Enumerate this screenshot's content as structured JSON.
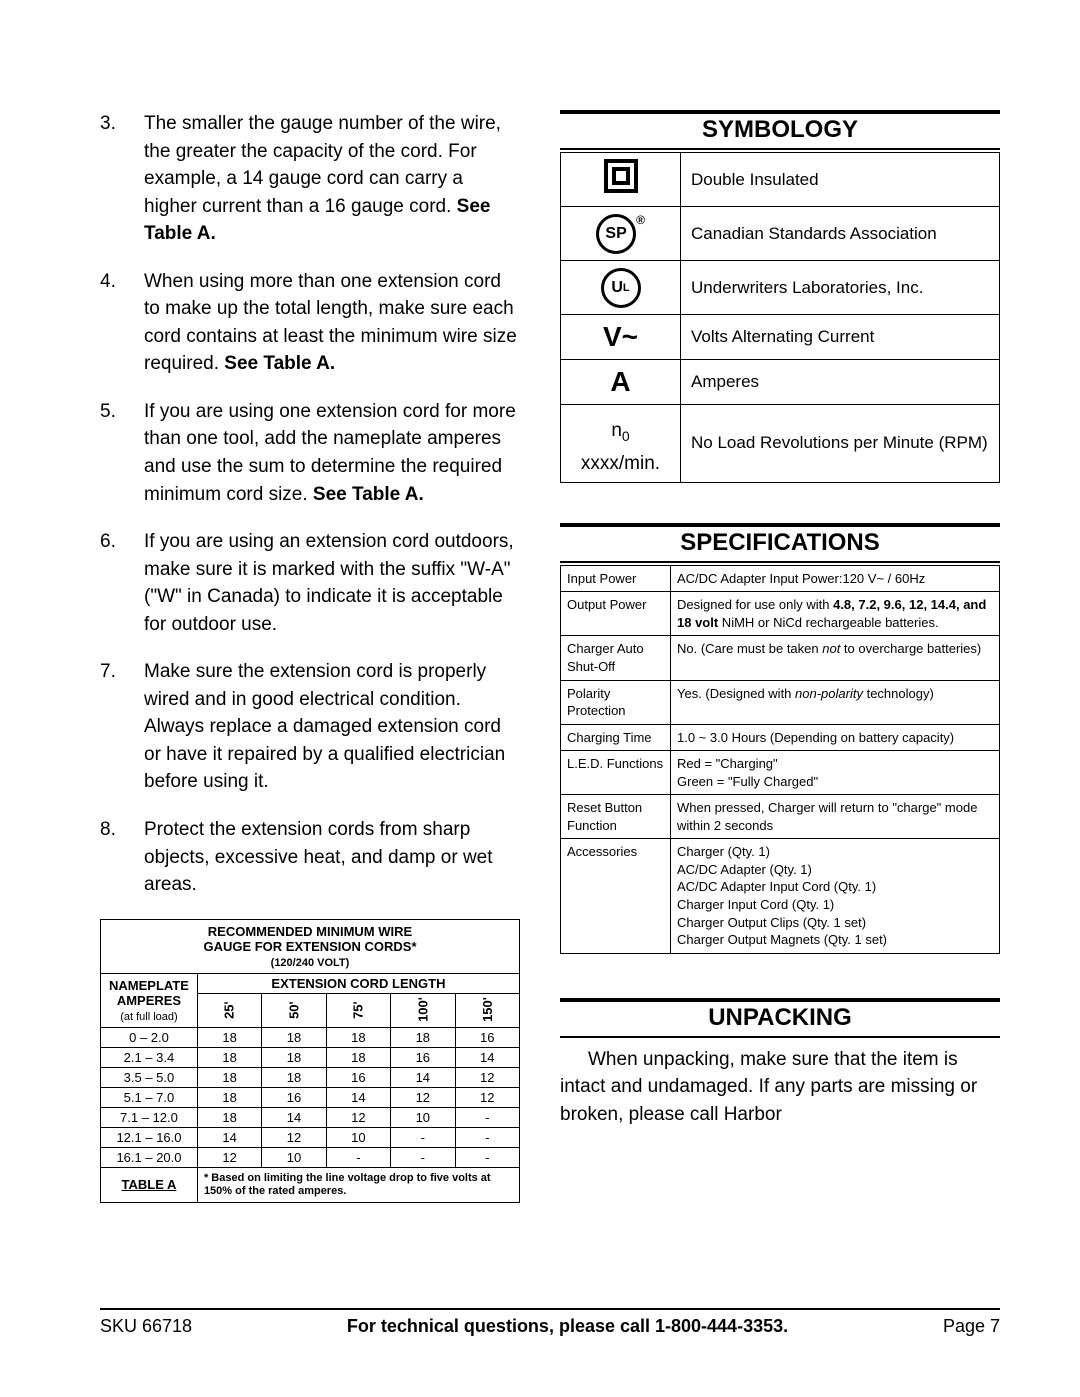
{
  "list": {
    "items": [
      {
        "num": "3.",
        "html": "The smaller the gauge number of the wire, the greater the capacity of the cord.  For example, a 14 gauge cord can carry a higher current than a 16 gauge cord.  <b>See Table A.</b>"
      },
      {
        "num": "4.",
        "html": "When using more than one extension cord to make up the total length, make sure each cord contains at least the minimum wire size required.  <b>See Table A.</b>"
      },
      {
        "num": "5.",
        "html": "If you are using one extension cord for more than one tool, add the nameplate amperes and use the sum to determine the required minimum cord size.  <b>See Table A.</b>"
      },
      {
        "num": "6.",
        "html": "If you are using an extension cord outdoors, make sure it is marked with the suffix \"W-A\" (\"W\" in Canada) to indicate it is acceptable for outdoor use."
      },
      {
        "num": "7.",
        "html": "Make sure the extension cord is properly wired and in good electrical condition.  Always replace a damaged extension cord or have it repaired by a qualified electrician before using it."
      },
      {
        "num": "8.",
        "html": "Protect the extension cords from sharp objects, excessive heat, and damp or wet areas."
      }
    ]
  },
  "wire_table": {
    "title1": "RECOMMENDED MINIMUM WIRE",
    "title2": "GAUGE FOR EXTENSION CORDS*",
    "title3": "(120/240 VOLT)",
    "col1_a": "NAMEPLATE",
    "col1_b": "AMPERES",
    "col1_c": "(at full load)",
    "col_group": "EXTENSION CORD LENGTH",
    "lengths": [
      "25'",
      "50'",
      "75'",
      "100'",
      "150'"
    ],
    "rows": [
      {
        "r": "0 – 2.0",
        "v": [
          "18",
          "18",
          "18",
          "18",
          "16"
        ]
      },
      {
        "r": "2.1 – 3.4",
        "v": [
          "18",
          "18",
          "18",
          "16",
          "14"
        ]
      },
      {
        "r": "3.5 – 5.0",
        "v": [
          "18",
          "18",
          "16",
          "14",
          "12"
        ]
      },
      {
        "r": "5.1 – 7.0",
        "v": [
          "18",
          "16",
          "14",
          "12",
          "12"
        ]
      },
      {
        "r": "7.1 – 12.0",
        "v": [
          "18",
          "14",
          "12",
          "10",
          "-"
        ]
      },
      {
        "r": "12.1 – 16.0",
        "v": [
          "14",
          "12",
          "10",
          "-",
          "-"
        ]
      },
      {
        "r": "16.1 – 20.0",
        "v": [
          "12",
          "10",
          "-",
          "-",
          "-"
        ]
      }
    ],
    "foot_label": "TABLE A",
    "foot_note": "* Based on limiting the line voltage drop to five volts at 150% of the rated amperes."
  },
  "symbology": {
    "heading": "SYMBOLOGY",
    "rows": [
      {
        "sym_type": "double-box",
        "text": "Double Insulated"
      },
      {
        "sym_type": "csa",
        "text": "Canadian Standards Association"
      },
      {
        "sym_type": "ul",
        "text": "Underwriters Laboratories, Inc."
      },
      {
        "sym_type": "vac",
        "sym_text": "V~",
        "text": "Volts Alternating Current"
      },
      {
        "sym_type": "amp",
        "sym_text": "A",
        "text": "Amperes"
      },
      {
        "sym_type": "rpm",
        "sym_text": "n0 xxxx/min.",
        "text": "No Load Revolutions per Minute (RPM)"
      }
    ]
  },
  "specs": {
    "heading": "SPECIFICATIONS",
    "rows": [
      {
        "label": "Input Power",
        "html": "AC/DC Adapter Input Power:120 V~ / 60Hz"
      },
      {
        "label": "Output Power",
        "html": "Designed for use only with <b>4.8, 7.2, 9.6, 12, 14.4, and 18 volt</b> NiMH or NiCd rechargeable batteries."
      },
      {
        "label": "Charger Auto Shut-Off",
        "html": "No. (Care must be taken <i>not</i> to overcharge batteries)"
      },
      {
        "label": "Polarity Protection",
        "html": "Yes.  (Designed with <i>non-polarity</i> technology)"
      },
      {
        "label": "Charging Time",
        "html": "1.0 ~ 3.0 Hours (Depending on battery capacity)"
      },
      {
        "label": "L.E.D. Functions",
        "html": "Red = \"Charging\"<br>Green = \"Fully Charged\""
      },
      {
        "label": "Reset Button Function",
        "html": "When pressed, Charger will return to \"charge\" mode within 2 seconds"
      },
      {
        "label": "Accessories",
        "html": "Charger (Qty. 1)<br>AC/DC Adapter (Qty. 1)<br>AC/DC Adapter Input Cord (Qty. 1)<br>Charger Input Cord (Qty. 1)<br>Charger Output Clips (Qty. 1 set)<br>Charger Output Magnets (Qty. 1 set)"
      }
    ]
  },
  "unpacking": {
    "heading": "UNPACKING",
    "text": "When unpacking, make sure that the item is intact and undamaged.  If any parts are missing or broken, please call Harbor"
  },
  "footer": {
    "sku": "SKU 66718",
    "mid": "For technical questions, please call 1-800-444-3353.",
    "page": "Page 7"
  }
}
